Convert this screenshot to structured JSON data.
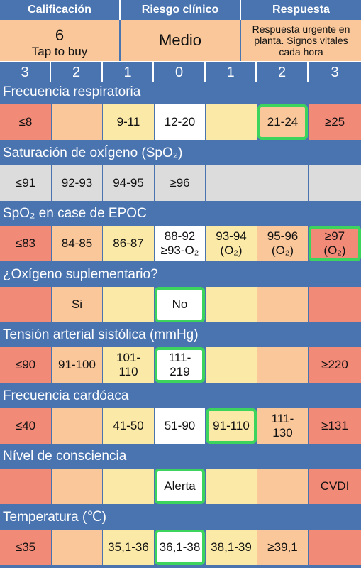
{
  "header": {
    "labels": [
      "Calificación",
      "Riesgo clínico",
      "Respuesta"
    ],
    "score": "6",
    "tap_to_buy": "Tap to buy",
    "risk": "Medio",
    "response": "Respuesta urgente en planta. Signos vitales cada hora"
  },
  "score_cols": [
    "3",
    "2",
    "1",
    "0",
    "1",
    "2",
    "3"
  ],
  "sections": [
    {
      "title": "Frecuencia respiratoria",
      "cells": [
        {
          "text": "≤8",
          "color": "red"
        },
        {
          "text": "",
          "color": "org"
        },
        {
          "text": "9-11",
          "color": "yel"
        },
        {
          "text": "12-20",
          "color": "wht"
        },
        {
          "text": "",
          "color": "yel"
        },
        {
          "text": "21-24",
          "color": "org",
          "selected": true
        },
        {
          "text": "≥25",
          "color": "red"
        }
      ]
    },
    {
      "title": "Saturación de oxÍgeno (SpO₂)",
      "cells": [
        {
          "text": "≤91",
          "color": "gry"
        },
        {
          "text": "92-93",
          "color": "gry"
        },
        {
          "text": "94-95",
          "color": "gry"
        },
        {
          "text": "≥96",
          "color": "gry"
        },
        {
          "text": "",
          "color": "gry"
        },
        {
          "text": "",
          "color": "gry"
        },
        {
          "text": "",
          "color": "gry"
        }
      ]
    },
    {
      "title": "SpO₂ en case de EPOC",
      "cells": [
        {
          "text": "≤83",
          "color": "red"
        },
        {
          "text": "84-85",
          "color": "org"
        },
        {
          "text": "86-87",
          "color": "yel"
        },
        {
          "text": "88-92\n≥93-O₂",
          "color": "wht"
        },
        {
          "text": "93-94\n(O₂)",
          "color": "yel"
        },
        {
          "text": "95-96\n(O₂)",
          "color": "org"
        },
        {
          "text": "≥97\n(O₂)",
          "color": "red",
          "selected": true
        }
      ]
    },
    {
      "title": "¿Oxígeno suplementario?",
      "cells": [
        {
          "text": "",
          "color": "red"
        },
        {
          "text": "Si",
          "color": "org"
        },
        {
          "text": "",
          "color": "yel"
        },
        {
          "text": "No",
          "color": "wht",
          "selected": true
        },
        {
          "text": "",
          "color": "yel"
        },
        {
          "text": "",
          "color": "org"
        },
        {
          "text": "",
          "color": "red"
        }
      ]
    },
    {
      "title": "Tensión arterial sistólica (mmHg)",
      "cells": [
        {
          "text": "≤90",
          "color": "red"
        },
        {
          "text": "91-100",
          "color": "org"
        },
        {
          "text": "101-\n110",
          "color": "yel"
        },
        {
          "text": "111-\n219",
          "color": "wht",
          "selected": true
        },
        {
          "text": "",
          "color": "yel"
        },
        {
          "text": "",
          "color": "org"
        },
        {
          "text": "≥220",
          "color": "red"
        }
      ]
    },
    {
      "title": "Frecuencia cardóaca",
      "cells": [
        {
          "text": "≤40",
          "color": "red"
        },
        {
          "text": "",
          "color": "org"
        },
        {
          "text": "41-50",
          "color": "yel"
        },
        {
          "text": "51-90",
          "color": "wht"
        },
        {
          "text": "91-110",
          "color": "yel",
          "selected": true
        },
        {
          "text": "111-\n130",
          "color": "org"
        },
        {
          "text": "≥131",
          "color": "red"
        }
      ]
    },
    {
      "title": "Nível de consciencia",
      "cells": [
        {
          "text": "",
          "color": "red"
        },
        {
          "text": "",
          "color": "org"
        },
        {
          "text": "",
          "color": "yel"
        },
        {
          "text": "Alerta",
          "color": "wht",
          "selected": true
        },
        {
          "text": "",
          "color": "yel"
        },
        {
          "text": "",
          "color": "org"
        },
        {
          "text": "CVDI",
          "color": "red"
        }
      ]
    },
    {
      "title": "Temperatura (℃)",
      "cells": [
        {
          "text": "≤35",
          "color": "red"
        },
        {
          "text": "",
          "color": "org"
        },
        {
          "text": "35,1-36",
          "color": "yel"
        },
        {
          "text": "36,1-38",
          "color": "wht",
          "selected": true
        },
        {
          "text": "38,1-39",
          "color": "yel"
        },
        {
          "text": "≥39,1",
          "color": "org"
        },
        {
          "text": "",
          "color": "red"
        }
      ]
    }
  ]
}
